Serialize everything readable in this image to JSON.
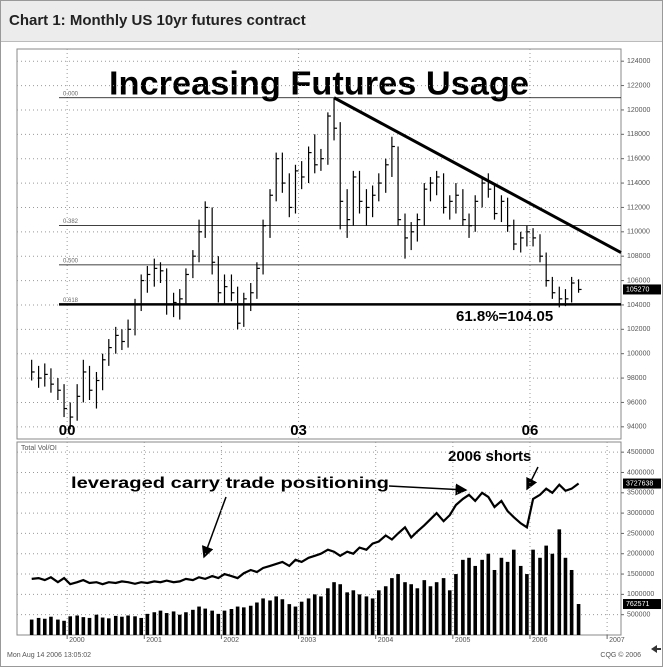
{
  "header": {
    "title": "Chart 1: Monthly US 10yr futures contract"
  },
  "footer": {
    "left": "Mon Aug 14 2006 13:05:02",
    "right": "CQG © 2006"
  },
  "chart_data": [
    {
      "type": "ohlc",
      "title": "Increasing Futures Usage",
      "color": "#000000",
      "grid": true,
      "x": [
        1999.54,
        1999.63,
        1999.71,
        1999.79,
        1999.88,
        1999.96,
        2000.04,
        2000.13,
        2000.21,
        2000.29,
        2000.38,
        2000.46,
        2000.54,
        2000.63,
        2000.71,
        2000.79,
        2000.88,
        2000.96,
        2001.04,
        2001.13,
        2001.21,
        2001.29,
        2001.38,
        2001.46,
        2001.54,
        2001.63,
        2001.71,
        2001.79,
        2001.88,
        2001.96,
        2002.04,
        2002.13,
        2002.21,
        2002.29,
        2002.38,
        2002.46,
        2002.54,
        2002.63,
        2002.71,
        2002.79,
        2002.88,
        2002.96,
        2003.04,
        2003.13,
        2003.21,
        2003.29,
        2003.38,
        2003.46,
        2003.54,
        2003.63,
        2003.71,
        2003.79,
        2003.88,
        2003.96,
        2004.04,
        2004.13,
        2004.21,
        2004.29,
        2004.38,
        2004.46,
        2004.54,
        2004.63,
        2004.71,
        2004.79,
        2004.88,
        2004.96,
        2005.04,
        2005.13,
        2005.21,
        2005.29,
        2005.38,
        2005.46,
        2005.54,
        2005.63,
        2005.71,
        2005.79,
        2005.88,
        2005.96,
        2006.04,
        2006.13,
        2006.21,
        2006.29,
        2006.38,
        2006.46,
        2006.54,
        2006.63
      ],
      "high": [
        99500,
        99000,
        99200,
        98800,
        98000,
        97500,
        96000,
        97500,
        99500,
        99000,
        98500,
        100000,
        101200,
        102200,
        102000,
        102800,
        104500,
        106500,
        107200,
        107800,
        107500,
        107000,
        105000,
        105300,
        107000,
        108500,
        111000,
        112500,
        112000,
        108000,
        106500,
        106500,
        105500,
        105000,
        105800,
        107500,
        111000,
        113500,
        116500,
        116500,
        114800,
        115500,
        115800,
        117000,
        118000,
        116800,
        119800,
        121000,
        119000,
        113500,
        115000,
        115000,
        113500,
        113800,
        114800,
        116000,
        117800,
        117000,
        111500,
        110800,
        111500,
        114000,
        114500,
        115000,
        114800,
        113000,
        114000,
        113500,
        111500,
        113000,
        114500,
        114800,
        113800,
        113000,
        112800,
        111000,
        110000,
        110500,
        110300,
        109800,
        108300,
        106300,
        105500,
        105300,
        106300,
        106100
      ],
      "low": [
        97800,
        97200,
        97300,
        96800,
        96200,
        94800,
        93800,
        94500,
        96000,
        96200,
        95500,
        97000,
        99000,
        100000,
        100300,
        100500,
        101500,
        103500,
        105000,
        105500,
        105800,
        103200,
        103000,
        102800,
        104000,
        106200,
        107500,
        109500,
        106500,
        104200,
        104000,
        104300,
        102000,
        102200,
        103500,
        104500,
        106500,
        109500,
        112500,
        113200,
        111200,
        111500,
        113500,
        114000,
        114800,
        115000,
        115500,
        117500,
        110200,
        109500,
        110500,
        111500,
        110500,
        111200,
        112500,
        113200,
        114500,
        110500,
        107800,
        108500,
        109200,
        110500,
        112500,
        113000,
        111500,
        111000,
        111500,
        110500,
        109500,
        110000,
        112000,
        112800,
        111000,
        110800,
        110000,
        108500,
        108300,
        108800,
        108800,
        107500,
        105500,
        104500,
        103800,
        103900,
        104200,
        105000
      ],
      "close": [
        98500,
        98000,
        98300,
        97500,
        97000,
        95500,
        94800,
        96500,
        98500,
        97000,
        97800,
        99500,
        100500,
        101500,
        101000,
        102000,
        104000,
        106000,
        106500,
        107000,
        106800,
        104000,
        104200,
        104500,
        106500,
        108000,
        110000,
        112000,
        107500,
        105000,
        105500,
        105000,
        102500,
        104500,
        105000,
        107000,
        110500,
        113000,
        116000,
        114000,
        112000,
        115000,
        114500,
        116500,
        115500,
        116000,
        119500,
        118500,
        112500,
        111000,
        114500,
        112500,
        112000,
        113000,
        114000,
        115500,
        117000,
        111000,
        109500,
        110000,
        111000,
        113500,
        114000,
        114500,
        112000,
        112500,
        113000,
        111000,
        110500,
        112500,
        114000,
        113500,
        111500,
        112500,
        110500,
        109000,
        109500,
        110000,
        109500,
        108000,
        106000,
        105000,
        104500,
        104500,
        105800,
        105270
      ],
      "xlim": [
        1999.35,
        2007.18
      ],
      "xticks": [
        {
          "value": 2000,
          "label": "00"
        },
        {
          "value": 2003,
          "label": "03"
        },
        {
          "value": 2006,
          "label": "06"
        }
      ],
      "ylim": [
        93000,
        125000
      ],
      "yticks": [
        94000,
        96000,
        98000,
        100000,
        102000,
        104000,
        106000,
        108000,
        110000,
        112000,
        114000,
        116000,
        118000,
        120000,
        122000,
        124000
      ],
      "fib_levels": [
        {
          "label": "0.000",
          "value": 121000
        },
        {
          "label": "0.382",
          "value": 110520
        },
        {
          "label": "0.500",
          "value": 107290
        },
        {
          "label": "0.618",
          "value": 104050
        }
      ],
      "annotation": "61.8%=104.05",
      "trendline": {
        "x": [
          2003.46,
          2007.18
        ],
        "y": [
          121000,
          108300
        ]
      }
    },
    {
      "type": "bar_line",
      "label": "Total Vol/OI",
      "color": "#000000",
      "grid": true,
      "x": [
        1999.54,
        1999.63,
        1999.71,
        1999.79,
        1999.88,
        1999.96,
        2000.04,
        2000.13,
        2000.21,
        2000.29,
        2000.38,
        2000.46,
        2000.54,
        2000.63,
        2000.71,
        2000.79,
        2000.88,
        2000.96,
        2001.04,
        2001.13,
        2001.21,
        2001.29,
        2001.38,
        2001.46,
        2001.54,
        2001.63,
        2001.71,
        2001.79,
        2001.88,
        2001.96,
        2002.04,
        2002.13,
        2002.21,
        2002.29,
        2002.38,
        2002.46,
        2002.54,
        2002.63,
        2002.71,
        2002.79,
        2002.88,
        2002.96,
        2003.04,
        2003.13,
        2003.21,
        2003.29,
        2003.38,
        2003.46,
        2003.54,
        2003.63,
        2003.71,
        2003.79,
        2003.88,
        2003.96,
        2004.04,
        2004.13,
        2004.21,
        2004.29,
        2004.38,
        2004.46,
        2004.54,
        2004.63,
        2004.71,
        2004.79,
        2004.88,
        2004.96,
        2005.04,
        2005.13,
        2005.21,
        2005.29,
        2005.38,
        2005.46,
        2005.54,
        2005.63,
        2005.71,
        2005.79,
        2005.88,
        2005.96,
        2006.04,
        2006.13,
        2006.21,
        2006.29,
        2006.38,
        2006.46,
        2006.54,
        2006.63
      ],
      "volume": [
        380000,
        420000,
        400000,
        450000,
        380000,
        350000,
        460000,
        480000,
        440000,
        420000,
        500000,
        430000,
        410000,
        470000,
        450000,
        480000,
        460000,
        420000,
        520000,
        560000,
        600000,
        540000,
        580000,
        500000,
        560000,
        620000,
        700000,
        650000,
        600000,
        520000,
        600000,
        640000,
        700000,
        680000,
        720000,
        800000,
        900000,
        850000,
        950000,
        880000,
        760000,
        700000,
        820000,
        900000,
        1000000,
        950000,
        1150000,
        1300000,
        1250000,
        1050000,
        1100000,
        1000000,
        950000,
        900000,
        1100000,
        1200000,
        1400000,
        1500000,
        1300000,
        1250000,
        1150000,
        1350000,
        1200000,
        1300000,
        1400000,
        1100000,
        1500000,
        1850000,
        1900000,
        1700000,
        1850000,
        2000000,
        1600000,
        1900000,
        1800000,
        2100000,
        1700000,
        1500000,
        2100000,
        1900000,
        2200000,
        2000000,
        2600000,
        1900000,
        1600000,
        762571
      ],
      "open_interest": [
        1380000,
        1400000,
        1350000,
        1420000,
        1300000,
        1400000,
        1250000,
        1300000,
        1350000,
        1280000,
        1300000,
        1250000,
        1300000,
        1280000,
        1320000,
        1300000,
        1260000,
        1300000,
        1280000,
        1320000,
        1300000,
        1340000,
        1300000,
        1320000,
        1380000,
        1350000,
        1420000,
        1380000,
        1450000,
        1400000,
        1500000,
        1450000,
        1400000,
        1520000,
        1600000,
        1550000,
        1650000,
        1700000,
        1750000,
        1800000,
        1700000,
        1850000,
        1800000,
        1900000,
        1950000,
        2000000,
        2100000,
        2050000,
        1950000,
        2050000,
        2000000,
        2150000,
        2100000,
        2250000,
        2300000,
        2450000,
        2350000,
        2500000,
        2650000,
        2400000,
        2550000,
        2700000,
        2850000,
        3000000,
        2800000,
        2950000,
        3200000,
        3350000,
        3450000,
        3300000,
        3500000,
        3400000,
        3150000,
        3300000,
        3050000,
        2900000,
        2750000,
        2650000,
        3350000,
        3450000,
        3600000,
        3500000,
        3700000,
        3550000,
        3600000,
        3727638
      ],
      "xlim": [
        1999.35,
        2007.18
      ],
      "xticks": [
        2000,
        2001,
        2002,
        2003,
        2004,
        2005,
        2006,
        2007
      ],
      "ylim": [
        0,
        4750000
      ],
      "yticks": [
        500000,
        1000000,
        1500000,
        2000000,
        2500000,
        3000000,
        3500000,
        4000000,
        4500000
      ],
      "annotations": [
        "leveraged carry trade positioning",
        "2006 shorts"
      ]
    }
  ]
}
